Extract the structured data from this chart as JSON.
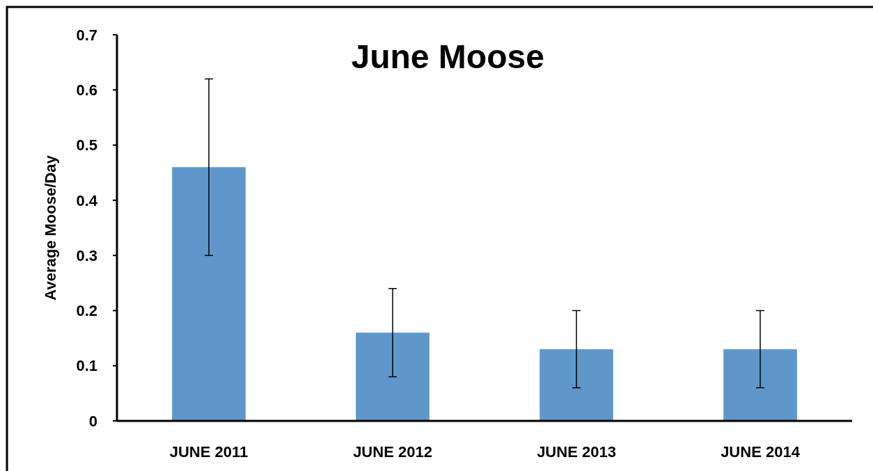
{
  "chart_data": {
    "type": "bar",
    "title": "June Moose",
    "ylabel": "Average Moose/Day",
    "categories": [
      "JUNE 2011",
      "JUNE 2012",
      "JUNE 2013",
      "JUNE 2014"
    ],
    "values": [
      0.46,
      0.16,
      0.13,
      0.13
    ],
    "errors": [
      0.16,
      0.08,
      0.07,
      0.07
    ],
    "color": "#5f97ca",
    "ylim": [
      0,
      0.7
    ],
    "yticks": [
      0,
      0.1,
      0.2,
      0.3,
      0.4,
      0.5,
      0.6,
      0.7
    ],
    "grid": false
  }
}
